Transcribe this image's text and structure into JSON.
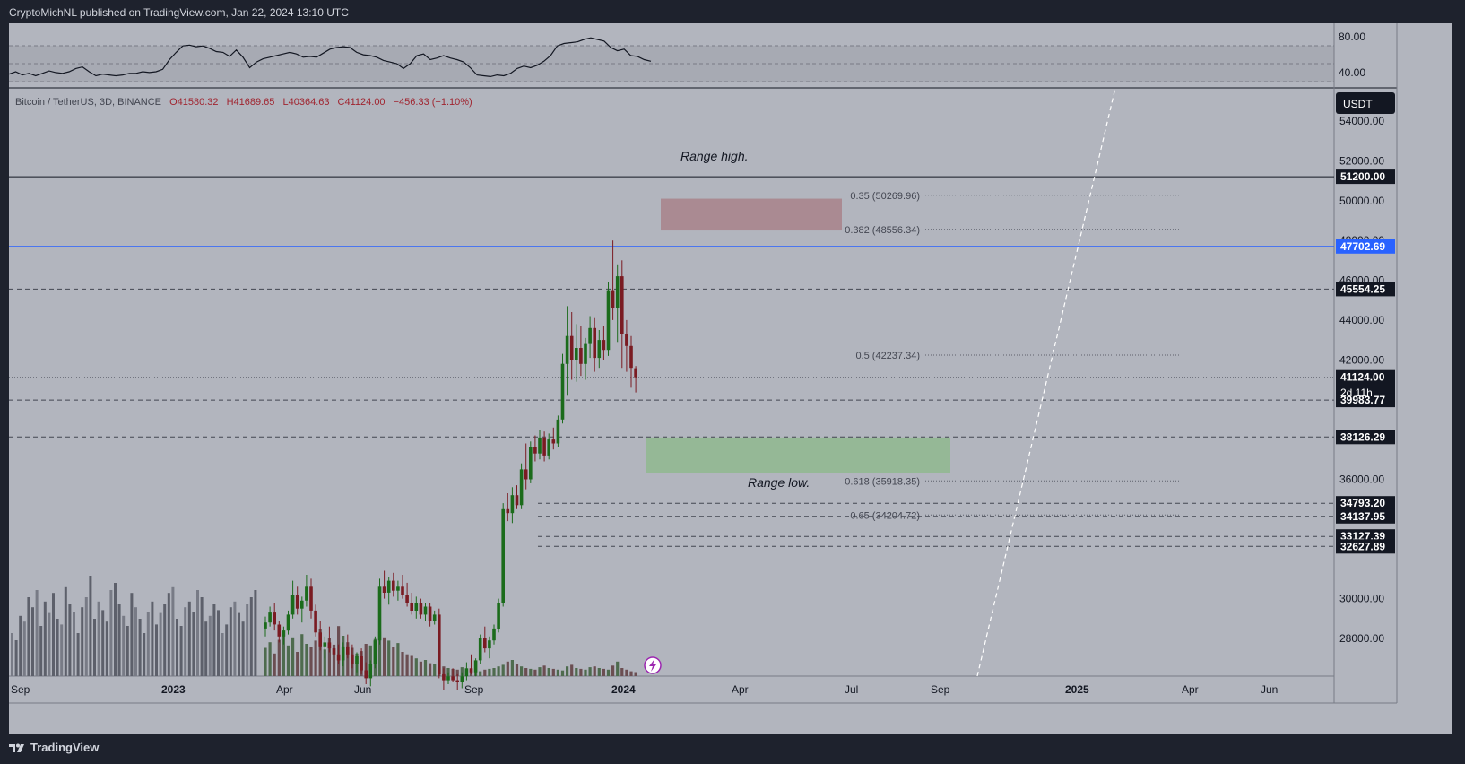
{
  "header": {
    "publisher": "CryptoMichNL published on TradingView.com, Jan 22, 2024 13:10 UTC"
  },
  "footer": {
    "brand": "TradingView"
  },
  "symbol": {
    "name": "Bitcoin / TetherUS, 3D, BINANCE",
    "open": "O41580.32",
    "high": "H41689.65",
    "low": "L40364.63",
    "close": "C41124.00",
    "change": "−456.33 (−1.10%)",
    "currency": "USDT",
    "countdown": "2d 11h"
  },
  "colors": {
    "up": "#1b6b1b",
    "down": "#7a1b22",
    "blue_line": "#2962ff",
    "pink_zone": "#a8858d",
    "green_zone": "#8fb98f"
  },
  "chart_data": {
    "type": "candlestick",
    "rsi_panel": {
      "ticks": [
        "80.00",
        "40.00"
      ],
      "ylim": [
        20,
        100
      ],
      "bands": [
        30,
        70
      ],
      "values": [
        37,
        40,
        36,
        38,
        35,
        38,
        41,
        39,
        38,
        40,
        44,
        46,
        40,
        35,
        37,
        36,
        35,
        36,
        38,
        38,
        40,
        39,
        40,
        43,
        55,
        64,
        72,
        73,
        71,
        72,
        69,
        65,
        64,
        59,
        67,
        58,
        45,
        52,
        56,
        58,
        60,
        62,
        64,
        62,
        58,
        59,
        58,
        63,
        68,
        70,
        71,
        70,
        64,
        61,
        60,
        58,
        54,
        52,
        50,
        44,
        50,
        60,
        62,
        55,
        57,
        60,
        57,
        55,
        52,
        45,
        36,
        35,
        34,
        36,
        35,
        38,
        44,
        47,
        45,
        48,
        53,
        60,
        72,
        75,
        76,
        77,
        80,
        82,
        80,
        78,
        70,
        66,
        68,
        60,
        59,
        55,
        53
      ]
    },
    "price_axis": {
      "ylim": [
        25000,
        55000
      ],
      "ticks": [
        "54000.00",
        "52000.00",
        "50000.00",
        "48000.00",
        "46000.00",
        "44000.00",
        "42000.00",
        "40000.00",
        "36000.00",
        "30000.00",
        "28000.00"
      ]
    },
    "x_ticks": [
      "Sep",
      "2023",
      "Apr",
      "Jun",
      "Sep",
      "2024",
      "Apr",
      "Jul",
      "Sep",
      "2025",
      "Apr",
      "Jun"
    ],
    "horizontal_levels": [
      {
        "price": 51200.0,
        "label": "51200.00",
        "style": "solid-black"
      },
      {
        "price": 47702.69,
        "label": "47702.69",
        "style": "solid-blue"
      },
      {
        "price": 45554.25,
        "label": "45554.25",
        "style": "dashed"
      },
      {
        "price": 41124.0,
        "label": "41124.00",
        "style": "dotted-current"
      },
      {
        "price": 39983.77,
        "label": "39983.77",
        "style": "dashed"
      },
      {
        "price": 38126.29,
        "label": "38126.29",
        "style": "dashed"
      },
      {
        "price": 34793.2,
        "label": "34793.20",
        "style": "dashed"
      },
      {
        "price": 34137.95,
        "label": "34137.95",
        "style": "dashed"
      },
      {
        "price": 33127.39,
        "label": "33127.39",
        "style": "dashed"
      },
      {
        "price": 32627.89,
        "label": "32627.89",
        "style": "dashed"
      }
    ],
    "fib_levels": [
      {
        "label": "0.35 (50269.96)",
        "price": 50269.96
      },
      {
        "label": "0.382 (48556.34)",
        "price": 48556.34
      },
      {
        "label": "0.5 (42237.34)",
        "price": 42237.34
      },
      {
        "label": "0.618 (35918.35)",
        "price": 35918.35
      },
      {
        "label": "0.65 (34204.72)",
        "price": 34204.72
      }
    ],
    "annotations": [
      {
        "text": "Range high.",
        "price": 52200
      },
      {
        "text": "Range low.",
        "price": 35800
      }
    ],
    "zones": [
      {
        "name": "resistance-zone",
        "from": "2024-03-01",
        "to": "2024-07-01",
        "low": 48500,
        "high": 50100
      },
      {
        "name": "support-zone",
        "from": "2024-01-27",
        "to": "2024-10-01",
        "low": 36300,
        "high": 38100
      }
    ],
    "candles": [
      [
        28500,
        29100,
        28100,
        28800
      ],
      [
        28800,
        29600,
        28600,
        29300
      ],
      [
        29300,
        29800,
        28400,
        28700
      ],
      [
        28700,
        28900,
        27800,
        28100
      ],
      [
        28100,
        28600,
        27700,
        28400
      ],
      [
        28400,
        29400,
        28200,
        29200
      ],
      [
        29200,
        30900,
        29000,
        30200
      ],
      [
        30200,
        30600,
        29200,
        29500
      ],
      [
        29500,
        30100,
        28800,
        29900
      ],
      [
        29900,
        31200,
        29600,
        30600
      ],
      [
        30600,
        31000,
        29000,
        29400
      ],
      [
        29400,
        29700,
        28100,
        28300
      ],
      [
        28300,
        28900,
        27400,
        27600
      ],
      [
        27600,
        28100,
        27000,
        27800
      ],
      [
        27800,
        28600,
        27300,
        27500
      ],
      [
        27500,
        27900,
        26800,
        27200
      ],
      [
        27200,
        27700,
        26700,
        26900
      ],
      [
        26900,
        27800,
        26600,
        27600
      ],
      [
        27600,
        28200,
        27000,
        27200
      ],
      [
        27200,
        27700,
        26500,
        26700
      ],
      [
        26700,
        27300,
        26300,
        27100
      ],
      [
        27100,
        27500,
        26200,
        26400
      ],
      [
        26400,
        26800,
        25700,
        26000
      ],
      [
        26000,
        26900,
        25600,
        26700
      ],
      [
        26700,
        28100,
        26500,
        27900
      ],
      [
        27900,
        31000,
        27700,
        30600
      ],
      [
        30600,
        31400,
        30000,
        30300
      ],
      [
        30300,
        31100,
        29700,
        30900
      ],
      [
        30900,
        31300,
        30100,
        30400
      ],
      [
        30400,
        30900,
        29900,
        30600
      ],
      [
        30600,
        31200,
        30000,
        30200
      ],
      [
        30200,
        30800,
        29600,
        29800
      ],
      [
        29800,
        30300,
        29200,
        29400
      ],
      [
        29400,
        30100,
        29000,
        29800
      ],
      [
        29800,
        30000,
        29000,
        29200
      ],
      [
        29200,
        29800,
        28900,
        29600
      ],
      [
        29600,
        29800,
        28600,
        28900
      ],
      [
        28900,
        29400,
        28700,
        29200
      ],
      [
        29200,
        29500,
        26000,
        26200
      ],
      [
        26200,
        26500,
        25400,
        25900
      ],
      [
        25900,
        26300,
        25700,
        26100
      ],
      [
        26100,
        26500,
        25800,
        25900
      ],
      [
        25900,
        26200,
        25400,
        25800
      ],
      [
        25800,
        26300,
        25500,
        26100
      ],
      [
        26100,
        26800,
        25900,
        26500
      ],
      [
        26500,
        27200,
        26200,
        26300
      ],
      [
        26300,
        27000,
        26100,
        26900
      ],
      [
        26900,
        28200,
        26700,
        28000
      ],
      [
        28000,
        28600,
        27300,
        27500
      ],
      [
        27500,
        28100,
        27000,
        27900
      ],
      [
        27900,
        28700,
        27700,
        28500
      ],
      [
        28500,
        30000,
        28300,
        29800
      ],
      [
        29800,
        34800,
        29600,
        34500
      ],
      [
        34500,
        35300,
        33900,
        34300
      ],
      [
        34300,
        35600,
        33800,
        35200
      ],
      [
        35200,
        35700,
        34500,
        34700
      ],
      [
        34700,
        36800,
        34500,
        36500
      ],
      [
        36500,
        37800,
        35500,
        36000
      ],
      [
        36000,
        37900,
        35800,
        37600
      ],
      [
        37600,
        38200,
        36900,
        37300
      ],
      [
        37300,
        38500,
        37000,
        38100
      ],
      [
        38100,
        38400,
        36900,
        37200
      ],
      [
        37200,
        38300,
        37000,
        38000
      ],
      [
        38000,
        38600,
        37500,
        37800
      ],
      [
        37800,
        39200,
        37600,
        39000
      ],
      [
        39000,
        42300,
        38800,
        41800
      ],
      [
        41800,
        44700,
        40200,
        43200
      ],
      [
        43200,
        44400,
        41000,
        42000
      ],
      [
        42000,
        43800,
        40900,
        42600
      ],
      [
        42600,
        43700,
        41200,
        41800
      ],
      [
        41800,
        43100,
        41000,
        42800
      ],
      [
        42800,
        44200,
        42100,
        43600
      ],
      [
        43600,
        44100,
        41400,
        42100
      ],
      [
        42100,
        43500,
        41600,
        43000
      ],
      [
        43000,
        43700,
        42000,
        42500
      ],
      [
        42500,
        45900,
        42200,
        45500
      ],
      [
        45500,
        48000,
        44000,
        44600
      ],
      [
        44600,
        46800,
        42900,
        46200
      ],
      [
        46200,
        47000,
        41600,
        43300
      ],
      [
        43300,
        44000,
        41400,
        42700
      ],
      [
        42700,
        43200,
        40600,
        41600
      ],
      [
        41580,
        41689,
        40364,
        41124
      ]
    ],
    "volume": [
      35,
      42,
      28,
      45,
      55,
      38,
      48,
      30,
      52,
      40,
      36,
      44,
      58,
      33,
      47,
      39,
      62,
      50,
      42,
      35,
      28,
      31,
      40,
      38,
      46,
      55,
      48,
      44,
      36,
      41,
      30,
      27,
      25,
      22,
      18,
      20,
      16,
      15,
      14,
      12,
      10,
      9,
      8,
      11,
      7,
      6,
      5,
      6,
      8,
      9,
      10,
      12,
      14,
      18,
      20,
      15,
      12,
      10,
      9,
      8,
      11,
      13,
      10,
      9,
      8,
      7,
      12,
      14,
      10,
      9,
      8,
      11,
      12,
      10,
      9,
      8,
      13,
      18,
      10,
      8,
      6,
      5
    ]
  }
}
